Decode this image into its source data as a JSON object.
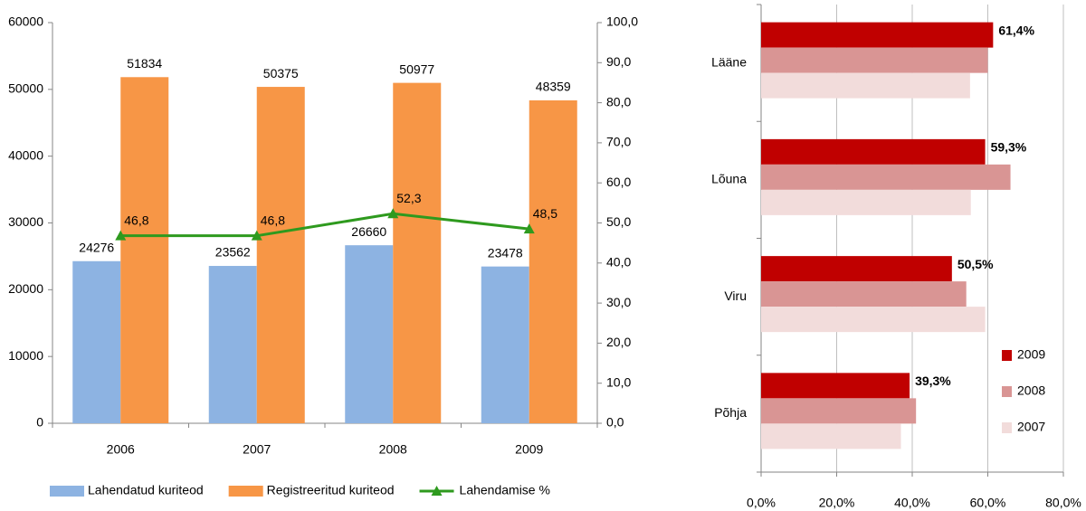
{
  "chart_data": [
    {
      "type": "bar",
      "categories": [
        "2006",
        "2007",
        "2008",
        "2009"
      ],
      "series": [
        {
          "name": "Lahendatud kuriteod",
          "color": "#8db3e2",
          "values": [
            24276,
            23562,
            26660,
            23478
          ]
        },
        {
          "name": "Registreeritud kuriteod",
          "color": "#f79646",
          "values": [
            51834,
            50375,
            50977,
            48359
          ]
        },
        {
          "name": "Lahendamise %",
          "color": "#2e9a1e",
          "axis": "y2",
          "values": [
            46.8,
            46.8,
            52.3,
            48.5
          ],
          "value_labels": [
            "46,8",
            "46,8",
            "52,3",
            "48,5"
          ]
        }
      ],
      "ylim": [
        0,
        60000
      ],
      "yticks": [
        0,
        10000,
        20000,
        30000,
        40000,
        50000,
        60000
      ],
      "y2lim": [
        0,
        100
      ],
      "y2ticks": [
        {
          "value": 0,
          "label": "0,0"
        },
        {
          "value": 10,
          "label": "10,0"
        },
        {
          "value": 20,
          "label": "20,0"
        },
        {
          "value": 30,
          "label": "30,0"
        },
        {
          "value": 40,
          "label": "40,0"
        },
        {
          "value": 50,
          "label": "50,0"
        },
        {
          "value": 60,
          "label": "60,0"
        },
        {
          "value": 70,
          "label": "70,0"
        },
        {
          "value": 80,
          "label": "80,0"
        },
        {
          "value": 90,
          "label": "90,0"
        },
        {
          "value": 100,
          "label": "100,0"
        }
      ],
      "grid": false,
      "legend": "bottom"
    },
    {
      "type": "barh",
      "categories": [
        "Lääne",
        "Lõuna",
        "Viru",
        "Põhja"
      ],
      "series": [
        {
          "name": "2009",
          "color": "#c00000",
          "values": [
            61.4,
            59.3,
            50.5,
            39.3
          ],
          "value_labels": [
            "61,4%",
            "59,3%",
            "50,5%",
            "39,3%"
          ]
        },
        {
          "name": "2008",
          "color": "#d99594",
          "values": [
            60,
            66,
            54.3,
            41
          ]
        },
        {
          "name": "2007",
          "color": "#f2dcdb",
          "values": [
            55.3,
            55.5,
            59.3,
            37
          ]
        }
      ],
      "xlim": [
        0,
        80
      ],
      "xticks": [
        {
          "value": 0,
          "label": "0,0%"
        },
        {
          "value": 20,
          "label": "20,0%"
        },
        {
          "value": 40,
          "label": "40,0%"
        },
        {
          "value": 60,
          "label": "60,0%"
        },
        {
          "value": 80,
          "label": "80,0%"
        }
      ],
      "grid": true,
      "legend": "lower right"
    }
  ]
}
